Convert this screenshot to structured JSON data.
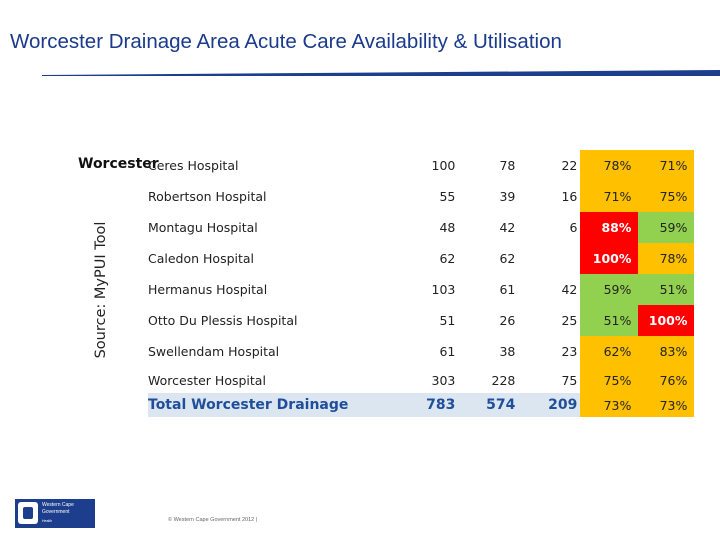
{
  "slide": {
    "title": "Worcester Drainage Area Acute Care Availability & Utilisation",
    "source_label": "Source: MyPUI Tool",
    "region_label": "Worcester",
    "footer": "© Western Cape Government 2012 |",
    "logo": {
      "line1": "Western Cape",
      "line2": "Government",
      "line3": "Health"
    }
  },
  "colors": {
    "title": "#1a3a8c",
    "amber": "#ffc000",
    "red": "#ff0000",
    "green": "#92d050",
    "total_row": "#dce6f1",
    "total_text": "#1f4e9a"
  },
  "table": {
    "rows": [
      {
        "name": "Ceres Hospital",
        "v1": "100",
        "v2": "78",
        "v3": "22",
        "p1": "78%",
        "p2": "71%",
        "p1_status": "amber",
        "p2_status": "amber"
      },
      {
        "name": "Robertson Hospital",
        "v1": "55",
        "v2": "39",
        "v3": "16",
        "p1": "71%",
        "p2": "75%",
        "p1_status": "amber",
        "p2_status": "amber"
      },
      {
        "name": "Montagu Hospital",
        "v1": "48",
        "v2": "42",
        "v3": "6",
        "p1": "88%",
        "p2": "59%",
        "p1_status": "red",
        "p2_status": "green"
      },
      {
        "name": "Caledon Hospital",
        "v1": "62",
        "v2": "62",
        "v3": "",
        "p1": "100%",
        "p2": "78%",
        "p1_status": "red",
        "p2_status": "amber"
      },
      {
        "name": "Hermanus Hospital",
        "v1": "103",
        "v2": "61",
        "v3": "42",
        "p1": "59%",
        "p2": "51%",
        "p1_status": "green",
        "p2_status": "green"
      },
      {
        "name": "Otto Du Plessis Hospital",
        "v1": "51",
        "v2": "26",
        "v3": "25",
        "p1": "51%",
        "p2": "100%",
        "p1_status": "green",
        "p2_status": "red"
      },
      {
        "name": "Swellendam Hospital",
        "v1": "61",
        "v2": "38",
        "v3": "23",
        "p1": "62%",
        "p2": "83%",
        "p1_status": "amber",
        "p2_status": "amber"
      },
      {
        "name": "Worcester Hospital",
        "v1": "303",
        "v2": "228",
        "v3": "75",
        "p1": "75%",
        "p2": "76%",
        "p1_status": "amber",
        "p2_status": "amber"
      }
    ],
    "total": {
      "name": "Total Worcester Drainage",
      "v1": "783",
      "v2": "574",
      "v3": "209",
      "p1": "73%",
      "p2": "73%",
      "p1_status": "amber",
      "p2_status": "amber"
    }
  }
}
